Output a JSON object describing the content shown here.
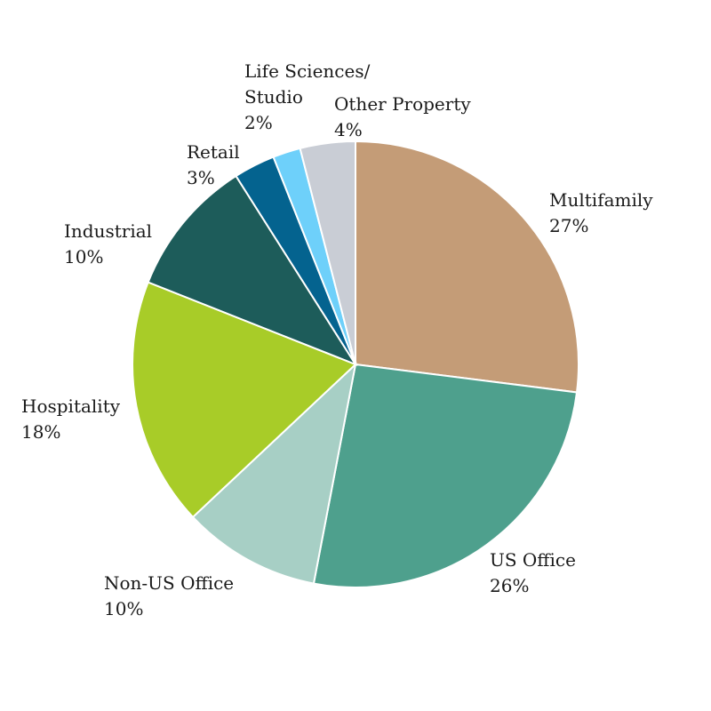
{
  "chart_data": {
    "type": "pie",
    "title": "",
    "slices": [
      {
        "label_lines": [
          "Multifamily"
        ],
        "pct_text": "27%",
        "value": 27,
        "color": "#C49C77"
      },
      {
        "label_lines": [
          "US Office"
        ],
        "pct_text": "26%",
        "value": 26,
        "color": "#4EA08D"
      },
      {
        "label_lines": [
          "Non-US Office"
        ],
        "pct_text": "10%",
        "value": 10,
        "color": "#A7CFC5"
      },
      {
        "label_lines": [
          "Hospitality"
        ],
        "pct_text": "18%",
        "value": 18,
        "color": "#A8CC28"
      },
      {
        "label_lines": [
          "Industrial"
        ],
        "pct_text": "10%",
        "value": 10,
        "color": "#1D5C5A"
      },
      {
        "label_lines": [
          "Retail"
        ],
        "pct_text": "3%",
        "value": 3,
        "color": "#04638F"
      },
      {
        "label_lines": [
          "Life Sciences/",
          "Studio"
        ],
        "pct_text": "2%",
        "value": 2,
        "color": "#6ED0FA"
      },
      {
        "label_lines": [
          "Other Property"
        ],
        "pct_text": "4%",
        "value": 4,
        "color": "#C9CDD5"
      }
    ],
    "start_position": "top",
    "direction": "clockwise",
    "legend": "none"
  }
}
